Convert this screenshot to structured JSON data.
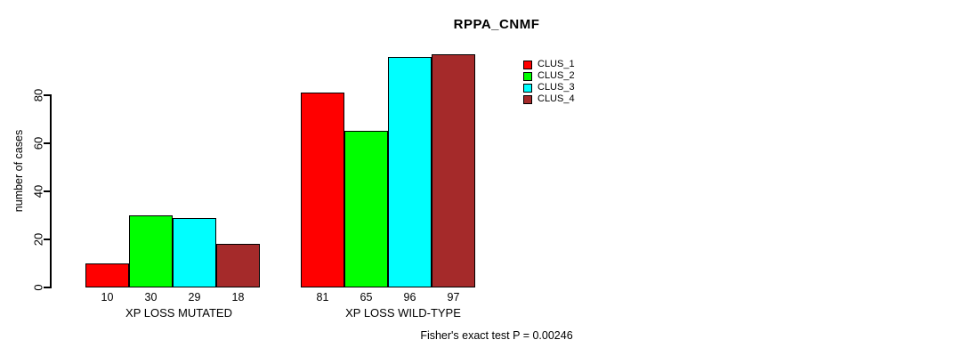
{
  "chart_data": {
    "type": "bar",
    "title": "RPPA_CNMF",
    "ylabel": "number of cases",
    "xlabel": "",
    "categories": [
      "XP LOSS MUTATED",
      "XP LOSS WILD-TYPE"
    ],
    "series": [
      {
        "name": "CLUS_1",
        "color": "#ff0000",
        "values": [
          10,
          81
        ]
      },
      {
        "name": "CLUS_2",
        "color": "#00ff00",
        "values": [
          30,
          65
        ]
      },
      {
        "name": "CLUS_3",
        "color": "#00ffff",
        "values": [
          29,
          96
        ]
      },
      {
        "name": "CLUS_4",
        "color": "#a52a2a",
        "values": [
          18,
          97
        ]
      }
    ],
    "yticks": [
      0,
      20,
      40,
      60,
      80
    ],
    "ylim": [
      0,
      97.5
    ],
    "grid": false,
    "legend_position": "top-right",
    "bar_border_color": "#000000",
    "annotation": "Fisher's exact test P = 0.00246"
  }
}
